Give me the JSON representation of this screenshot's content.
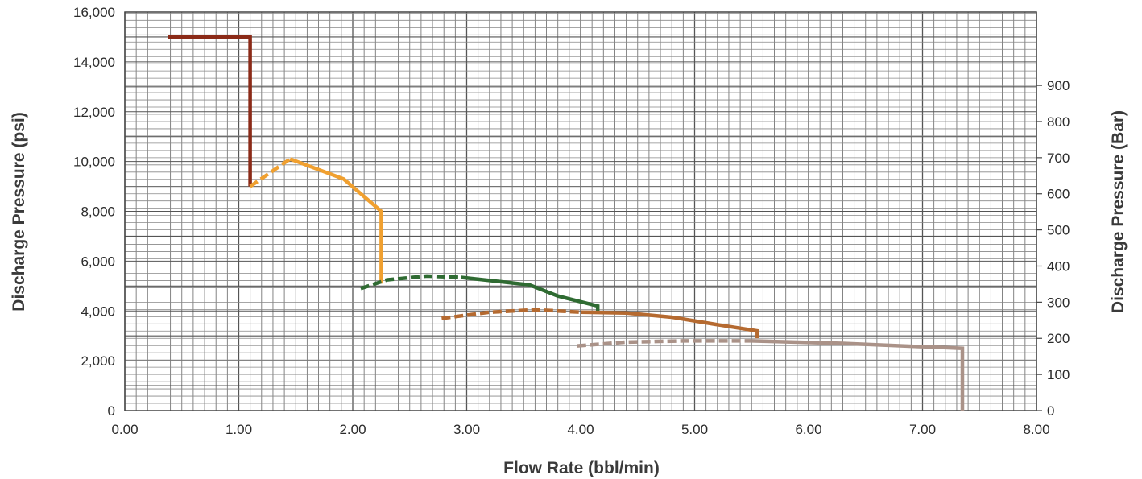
{
  "chart_data": {
    "type": "line",
    "title": "",
    "xlabel": "Flow Rate (bbl/min)",
    "ylabel": "Discharge Pressure (psi)",
    "y2label": "Discharge Pressure (Bar)",
    "xlim": [
      0,
      8
    ],
    "ylim": [
      0,
      16000
    ],
    "y2lim": [
      0,
      1103
    ],
    "x_ticks": [
      "0.00",
      "1.00",
      "2.00",
      "3.00",
      "4.00",
      "5.00",
      "6.00",
      "7.00",
      "8.00"
    ],
    "y_ticks": [
      "0",
      "2,000",
      "4,000",
      "6,000",
      "8,000",
      "10,000",
      "12,000",
      "14,000",
      "16,000"
    ],
    "y2_ticks": [
      "0",
      "100",
      "200",
      "300",
      "400",
      "500",
      "600",
      "700",
      "800",
      "900"
    ],
    "grid": true,
    "legend": "none",
    "series": [
      {
        "color": "#8b2a17",
        "dashed": [
          [
            0.38,
            15000
          ],
          [
            1.1,
            15000
          ]
        ],
        "solid": [
          [
            0.38,
            15000
          ],
          [
            1.1,
            15000
          ],
          [
            1.1,
            9000
          ]
        ]
      },
      {
        "color": "#f0a030",
        "dashed": [
          [
            1.1,
            9000
          ],
          [
            1.45,
            10100
          ]
        ],
        "solid": [
          [
            1.45,
            10100
          ],
          [
            1.92,
            9300
          ],
          [
            2.25,
            8000
          ],
          [
            2.25,
            5100
          ]
        ]
      },
      {
        "color": "#2f6b32",
        "dashed": [
          [
            2.07,
            4900
          ],
          [
            2.3,
            5250
          ],
          [
            2.65,
            5400
          ],
          [
            2.95,
            5350
          ]
        ],
        "solid": [
          [
            2.95,
            5350
          ],
          [
            3.25,
            5200
          ],
          [
            3.55,
            5050
          ],
          [
            3.8,
            4600
          ],
          [
            4.15,
            4200
          ],
          [
            4.15,
            3900
          ]
        ]
      },
      {
        "color": "#b56a30",
        "dashed": [
          [
            2.78,
            3700
          ],
          [
            3.2,
            3950
          ],
          [
            3.6,
            4050
          ],
          [
            4.0,
            3950
          ]
        ],
        "solid": [
          [
            4.0,
            3950
          ],
          [
            4.4,
            3920
          ],
          [
            4.8,
            3750
          ],
          [
            5.2,
            3450
          ],
          [
            5.55,
            3200
          ],
          [
            5.55,
            2900
          ]
        ]
      },
      {
        "color": "#aa9288",
        "dashed": [
          [
            3.97,
            2600
          ],
          [
            4.4,
            2750
          ],
          [
            4.9,
            2800
          ],
          [
            5.5,
            2800
          ]
        ],
        "solid": [
          [
            5.5,
            2800
          ],
          [
            6.3,
            2700
          ],
          [
            7.35,
            2500
          ],
          [
            7.35,
            0
          ]
        ]
      }
    ]
  }
}
